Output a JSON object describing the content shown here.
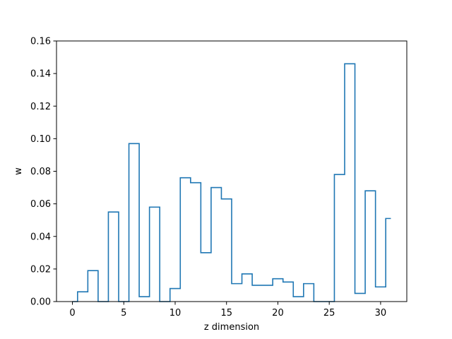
{
  "chart_data": {
    "type": "histogram-step",
    "title": "",
    "xlabel": "z dimension",
    "ylabel": "w",
    "xlim": [
      -1.55,
      32.55
    ],
    "ylim": [
      0,
      0.16
    ],
    "xticks": [
      0,
      5,
      10,
      15,
      20,
      25,
      30
    ],
    "yticks": [
      0.0,
      0.02,
      0.04,
      0.06,
      0.08,
      0.1,
      0.12,
      0.14,
      0.16
    ],
    "ytick_labels": [
      "0.00",
      "0.02",
      "0.04",
      "0.06",
      "0.08",
      "0.10",
      "0.12",
      "0.14",
      "0.16"
    ],
    "grid": false,
    "series": [
      {
        "color": "#1f77b4",
        "step": "mid",
        "x": [
          0,
          1,
          2,
          3,
          4,
          5,
          6,
          7,
          8,
          9,
          10,
          11,
          12,
          13,
          14,
          15,
          16,
          17,
          18,
          19,
          20,
          21,
          22,
          23,
          24,
          25,
          26,
          27,
          28,
          29,
          30,
          31
        ],
        "values": [
          0.0,
          0.006,
          0.019,
          0.0,
          0.055,
          0.0,
          0.097,
          0.003,
          0.058,
          0.0,
          0.008,
          0.076,
          0.073,
          0.03,
          0.07,
          0.063,
          0.011,
          0.017,
          0.01,
          0.01,
          0.014,
          0.012,
          0.003,
          0.011,
          0.0,
          0.0,
          0.078,
          0.146,
          0.005,
          0.068,
          0.009,
          0.051
        ]
      }
    ]
  }
}
